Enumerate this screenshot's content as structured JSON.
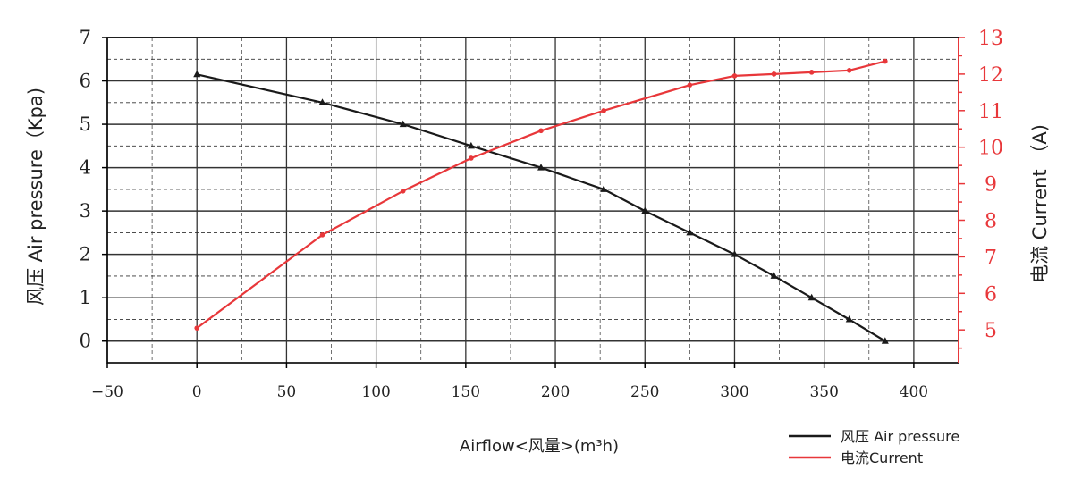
{
  "chart_data": {
    "type": "line",
    "xlabel": "Airflow<风量>(m³h)",
    "ylabel_left": "风压 Air pressure（Kpa)",
    "ylabel_right": "电流 Current （A)",
    "xlim": [
      -50,
      425
    ],
    "x_ticks": [
      -50,
      0,
      50,
      100,
      150,
      200,
      250,
      300,
      350,
      400
    ],
    "ylim_left": [
      -0.5,
      7
    ],
    "y_ticks_left": [
      0,
      1,
      2,
      3,
      4,
      5,
      6,
      7
    ],
    "ylim_right": [
      4.1,
      13
    ],
    "y_ticks_right": [
      5,
      6,
      7,
      8,
      9,
      10,
      11,
      12,
      13
    ],
    "grid": true,
    "legend_position": "bottom-right",
    "colors": {
      "pressure": "#1a1a1a",
      "current": "#e8373a",
      "grid": "#333333"
    },
    "series": [
      {
        "name": "风压 Air pressure",
        "axis": "left",
        "marker": "triangle",
        "x": [
          0,
          70,
          115,
          153,
          192,
          227,
          250,
          275,
          300,
          322,
          343,
          364,
          384
        ],
        "y": [
          6.15,
          5.5,
          5.0,
          4.5,
          4.0,
          3.5,
          3.0,
          2.5,
          2.0,
          1.5,
          1.0,
          0.5,
          0.0
        ]
      },
      {
        "name": "电流Current",
        "axis": "right",
        "marker": "dot",
        "x": [
          0,
          70,
          115,
          153,
          192,
          227,
          275,
          300,
          322,
          343,
          364,
          384
        ],
        "y": [
          5.05,
          7.6,
          8.8,
          9.7,
          10.45,
          11.0,
          11.7,
          11.95,
          12.0,
          12.05,
          12.1,
          12.35
        ]
      }
    ]
  }
}
